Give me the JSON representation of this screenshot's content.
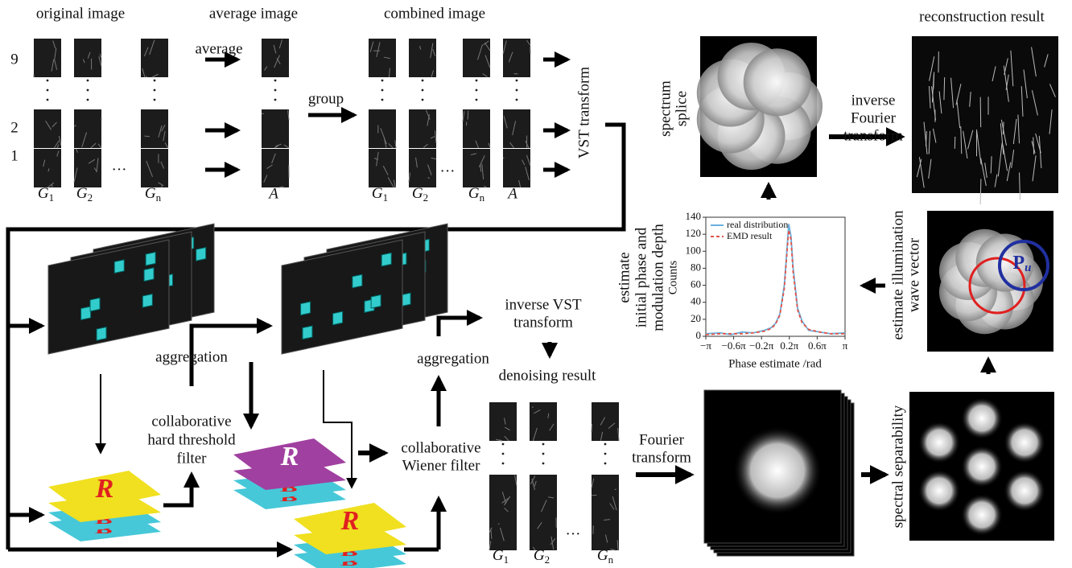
{
  "labels": {
    "original_image": "original image",
    "average_image": "average image",
    "combined_image": "combined image",
    "reconstruction_result": "reconstruction result",
    "denoising_result": "denoising result",
    "average": "average",
    "group": "group",
    "vst_transform": "VST transform",
    "spectrum_splice": [
      "spectrum",
      "splice"
    ],
    "inverse_fourier": [
      "inverse",
      "Fourier",
      "transform"
    ],
    "phase_estimate": [
      "estimate",
      "initial phase and",
      "modulation depth"
    ],
    "wave_vector": [
      "estimate illumination",
      "wave vector"
    ],
    "spectral_separability": "spectral separability",
    "aggregation": "aggregation",
    "hard_threshold": [
      "collaborative",
      "hard threshold",
      "filter"
    ],
    "wiener": [
      "collaborative",
      "Wiener filter"
    ],
    "inverse_vst": [
      "inverse VST",
      "transform"
    ],
    "fourier": [
      "Fourier",
      "transform"
    ],
    "row_labels": [
      "9",
      "2",
      "1"
    ],
    "g_letter": "G",
    "g_indices": [
      "1",
      "2",
      "n"
    ],
    "average_letter": "A",
    "ellipsis": "···",
    "block_letter": "R",
    "p_letter": "P",
    "p_sub": "u"
  },
  "chart_data": {
    "type": "line",
    "x_label": "Phase estimate /rad",
    "y_label": "Counts",
    "xlim": [
      -3.1416,
      3.1416
    ],
    "ylim": [
      0,
      140
    ],
    "yticks": [
      0,
      20,
      40,
      60,
      80,
      100,
      120,
      140
    ],
    "xticks": [
      {
        "value": -3.1416,
        "label": "−π"
      },
      {
        "value": -1.885,
        "label": "−0.6π"
      },
      {
        "value": -0.6283,
        "label": "−0.2π"
      },
      {
        "value": 0.6283,
        "label": "0.2π"
      },
      {
        "value": 1.885,
        "label": "0.6π"
      },
      {
        "value": 3.1416,
        "label": "π"
      }
    ],
    "legend": "upper left",
    "x": [
      -3.14,
      -2.5,
      -2,
      -1.5,
      -1,
      -0.5,
      -0.2,
      0,
      0.2,
      0.4,
      0.5,
      0.6,
      0.7,
      0.8,
      1.0,
      1.2,
      1.5,
      2,
      2.5,
      3.14
    ],
    "series": [
      {
        "name": "real distribution",
        "color": "#6ab0de",
        "dashed": false,
        "values": [
          3,
          4,
          2,
          5,
          4,
          7,
          10,
          15,
          26,
          60,
          95,
          132,
          118,
          80,
          33,
          18,
          7,
          5,
          3,
          4
        ]
      },
      {
        "name": "EMD result",
        "color": "#e0554a",
        "dashed": true,
        "values": [
          2,
          3,
          3,
          3,
          4,
          6,
          9,
          14,
          25,
          56,
          91,
          125,
          114,
          75,
          31,
          16,
          8,
          5,
          3,
          3
        ]
      }
    ]
  }
}
